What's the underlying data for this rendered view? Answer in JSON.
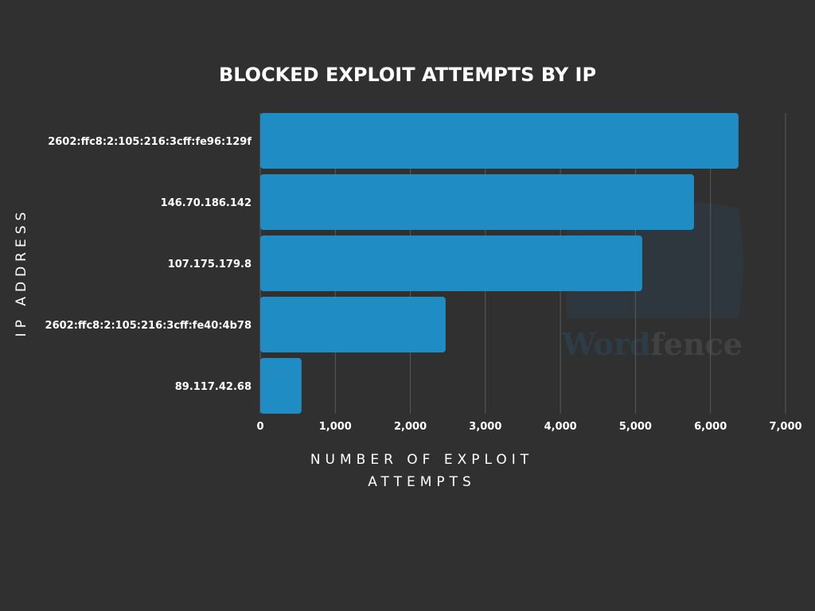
{
  "chart_data": {
    "type": "bar",
    "orientation": "horizontal",
    "title": "BLOCKED EXPLOIT ATTEMPTS BY IP",
    "xlabel": [
      "NUMBER OF EXPLOIT",
      "ATTEMPTS"
    ],
    "ylabel": "IP ADDRESS",
    "categories": [
      "2602:ffc8:2:105:216:3cff:fe96:129f",
      "146.70.186.142",
      "107.175.179.8",
      "2602:ffc8:2:105:216:3cff:fe40:4b78",
      "89.117.42.68"
    ],
    "values": [
      6373,
      5780,
      5090,
      2470,
      550
    ],
    "xlim": [
      0,
      7000
    ],
    "xticks": [
      0,
      1000,
      2000,
      3000,
      4000,
      5000,
      6000,
      7000
    ],
    "xtick_labels": [
      "0",
      "1,000",
      "2,000",
      "3,000",
      "4,000",
      "5,000",
      "6,000",
      "7,000"
    ],
    "grid": true,
    "bar_color": "#1f8dc3",
    "watermark": "Wordfence"
  }
}
